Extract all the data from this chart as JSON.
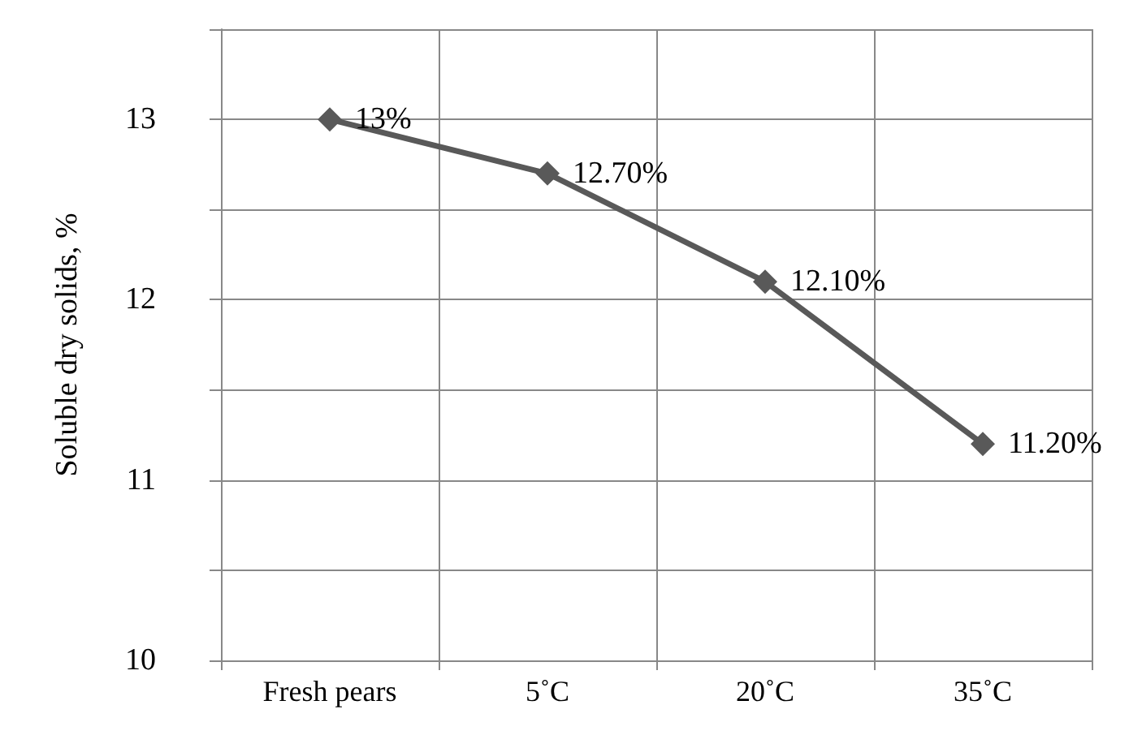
{
  "chart_data": {
    "type": "line",
    "ylabel": "Soluble dry solids, %",
    "categories": [
      "Fresh pears",
      "5˚C",
      "20˚C",
      "35˚C"
    ],
    "series": [
      {
        "color": "#595959",
        "values": [
          13,
          12.7,
          12.1,
          11.2
        ],
        "value_labels": [
          "13%",
          "12.70%",
          "12.10%",
          "11.20%"
        ]
      }
    ],
    "ylim": [
      10,
      13.5
    ],
    "yticks": [
      10,
      {
        "value": 10.5,
        "label": null
      },
      11,
      {
        "value": 11.5,
        "label": null
      },
      12,
      {
        "value": 12.5,
        "label": null
      },
      13,
      {
        "value": 13.5,
        "label": null
      }
    ],
    "grid": true,
    "marker": "diamond",
    "line_style": "solid"
  }
}
